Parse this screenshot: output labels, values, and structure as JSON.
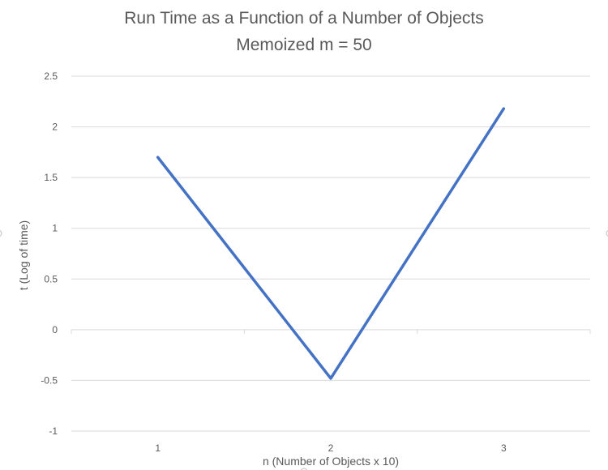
{
  "chart_data": {
    "type": "line",
    "title": "Run Time as a Function of a Number of Objects",
    "subtitle": "Memoized m = 50",
    "xlabel": "n (Number of Objects x 10)",
    "ylabel": "t (Log of time)",
    "categories": [
      "1",
      "2",
      "3"
    ],
    "series": [
      {
        "values": [
          1.7,
          -0.48,
          2.18
        ],
        "color": "#4472c4"
      }
    ],
    "ylim": [
      -1,
      2.5
    ],
    "yticks": [
      2.5,
      2,
      1.5,
      1,
      0.5,
      0,
      -0.5,
      -1
    ],
    "ytick_labels": [
      "2.5",
      "2",
      "1.5",
      "1",
      "0.5",
      "0",
      "-0.5",
      "-1"
    ],
    "grid": true,
    "legend": "none"
  },
  "colors": {
    "series": "#4472c4",
    "grid": "#d9d9d9",
    "text": "#595959"
  }
}
